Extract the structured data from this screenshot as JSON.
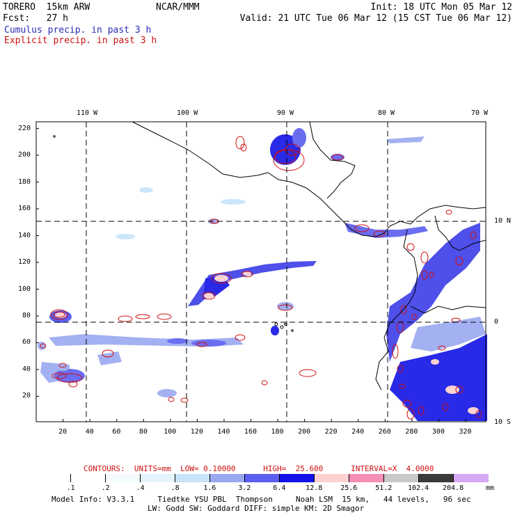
{
  "header": {
    "model": "TORERO  15km ARW",
    "org": "NCAR/MMM",
    "init": "Init: 18 UTC Mon 05 Mar 12",
    "fcst": "Fcst:   27 h",
    "valid": "Valid: 21 UTC Tue 06 Mar 12 (15 CST Tue 06 Mar 12)",
    "cumulus_label": "Cumulus precip. in past 3 h",
    "explicit_label": "Explicit precip. in past 3 h",
    "cumulus_color": "#2a2ab8",
    "explicit_color": "#cc1111"
  },
  "map": {
    "lon_labels_top": [
      "110 W",
      "100 W",
      "90 W",
      "80 W",
      "70 W"
    ],
    "lat_labels_right": [
      "10 N",
      "0",
      "10 S"
    ],
    "y_ticks": [
      "220",
      "200",
      "180",
      "160",
      "140",
      "120",
      "100",
      "80",
      "60",
      "40",
      "20"
    ],
    "x_ticks": [
      "20",
      "40",
      "60",
      "80",
      "100",
      "120",
      "140",
      "160",
      "180",
      "200",
      "220",
      "240",
      "260",
      "280",
      "300",
      "320"
    ],
    "x_range": [
      0,
      335
    ],
    "y_range": [
      1,
      225
    ],
    "meridian_grid_x": [
      39,
      113,
      187,
      261
    ],
    "parallel_grid_y": [
      76,
      150
    ]
  },
  "contours": {
    "label": "CONTOURS:  UNITS=mm  LOW= 0.10000      HIGH=  25.600      INTERVAL=X  4.0000"
  },
  "colorbar": {
    "labels": [
      ".1",
      ".2",
      ".4",
      ".8",
      "1.6",
      "3.2",
      "6.4",
      "12.8",
      "25.6",
      "51.2",
      "102.4",
      "204.8"
    ],
    "unit": "mm",
    "colors": [
      "#ffffff",
      "#ffffff",
      "#f4fbff",
      "#e4f4fc",
      "#c8e4fa",
      "#9aa8f0",
      "#5c5ef0",
      "#1212e6",
      "#ffd2d2",
      "#f58fb6",
      "#c8c8c8",
      "#3a3a3a",
      "#d8a8f8"
    ]
  },
  "footer": {
    "line1": "Model Info: V3.3.1     Tiedtke YSU PBL  Thompson     Noah LSM  15 km,   44 levels,   96 sec",
    "line2": "LW: Godd SW: Goddard DIFF: simple KM: 2D Smagor"
  }
}
